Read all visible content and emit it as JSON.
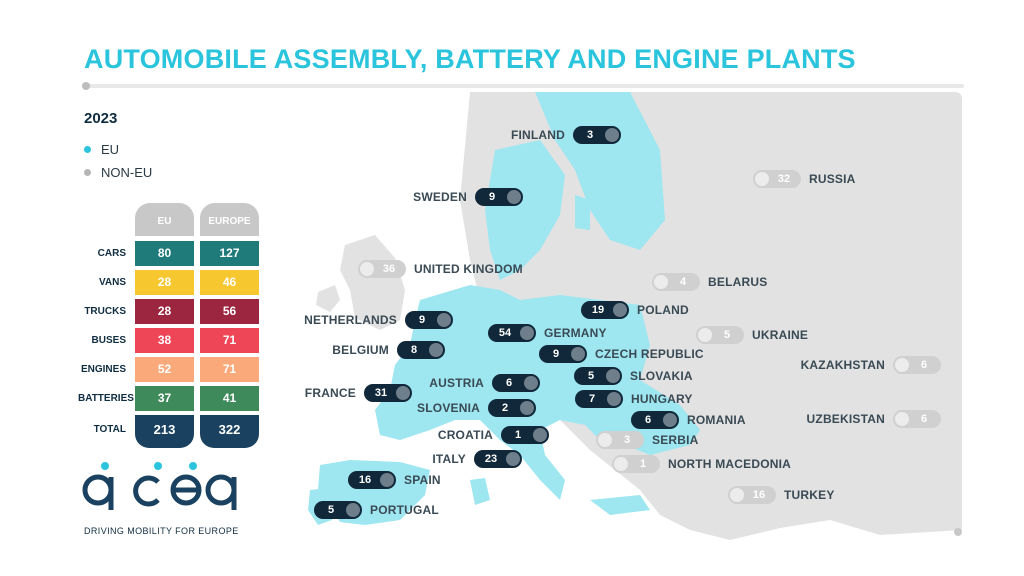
{
  "title": "AUTOMOBILE ASSEMBLY, BATTERY AND ENGINE PLANTS",
  "year": "2023",
  "legend": [
    {
      "label": "EU",
      "color": "#2bc4dd"
    },
    {
      "label": "NON-EU",
      "color": "#b5b5b5"
    }
  ],
  "table": {
    "columns": [
      "EU",
      "EUROPE"
    ],
    "rows": [
      {
        "label": "CARS",
        "eu": "80",
        "europe": "127",
        "color": "#1f7a7a"
      },
      {
        "label": "VANS",
        "eu": "28",
        "europe": "46",
        "color": "#f6c72e"
      },
      {
        "label": "TRUCKS",
        "eu": "28",
        "europe": "56",
        "color": "#9c2540"
      },
      {
        "label": "BUSES",
        "eu": "38",
        "europe": "71",
        "color": "#ee4657"
      },
      {
        "label": "ENGINES",
        "eu": "52",
        "europe": "71",
        "color": "#f9a97a"
      },
      {
        "label": "BATTERIES",
        "eu": "37",
        "europe": "41",
        "color": "#3f8a5a"
      }
    ],
    "total": {
      "label": "TOTAL",
      "eu": "213",
      "europe": "322"
    }
  },
  "logo": {
    "text": "acea",
    "tagline": "DRIVING MOBILITY FOR EUROPE"
  },
  "colors": {
    "eu_land": "#9ee6f0",
    "non_eu_land": "#e2e2e2",
    "eu_pill": "#10283a",
    "non_eu_pill": "#d0d0d0",
    "accent": "#2bc4dd"
  },
  "countries": [
    {
      "name": "FINLAND",
      "value": "3",
      "group": "eu"
    },
    {
      "name": "SWEDEN",
      "value": "9",
      "group": "eu"
    },
    {
      "name": "RUSSIA",
      "value": "32",
      "group": "non-eu"
    },
    {
      "name": "UNITED KINGDOM",
      "value": "36",
      "group": "non-eu"
    },
    {
      "name": "BELARUS",
      "value": "4",
      "group": "non-eu"
    },
    {
      "name": "POLAND",
      "value": "19",
      "group": "eu"
    },
    {
      "name": "NETHERLANDS",
      "value": "9",
      "group": "eu"
    },
    {
      "name": "GERMANY",
      "value": "54",
      "group": "eu"
    },
    {
      "name": "UKRAINE",
      "value": "5",
      "group": "non-eu"
    },
    {
      "name": "BELGIUM",
      "value": "8",
      "group": "eu"
    },
    {
      "name": "CZECH REPUBLIC",
      "value": "9",
      "group": "eu"
    },
    {
      "name": "KAZAKHSTAN",
      "value": "6",
      "group": "non-eu"
    },
    {
      "name": "SLOVAKIA",
      "value": "5",
      "group": "eu"
    },
    {
      "name": "AUSTRIA",
      "value": "6",
      "group": "eu"
    },
    {
      "name": "FRANCE",
      "value": "31",
      "group": "eu"
    },
    {
      "name": "HUNGARY",
      "value": "7",
      "group": "eu"
    },
    {
      "name": "SLOVENIA",
      "value": "2",
      "group": "eu"
    },
    {
      "name": "ROMANIA",
      "value": "6",
      "group": "eu"
    },
    {
      "name": "UZBEKISTAN",
      "value": "6",
      "group": "non-eu"
    },
    {
      "name": "CROATIA",
      "value": "1",
      "group": "eu"
    },
    {
      "name": "SERBIA",
      "value": "3",
      "group": "non-eu"
    },
    {
      "name": "ITALY",
      "value": "23",
      "group": "eu"
    },
    {
      "name": "NORTH MACEDONIA",
      "value": "1",
      "group": "non-eu"
    },
    {
      "name": "SPAIN",
      "value": "16",
      "group": "eu"
    },
    {
      "name": "TURKEY",
      "value": "16",
      "group": "non-eu"
    },
    {
      "name": "PORTUGAL",
      "value": "5",
      "group": "eu"
    }
  ]
}
